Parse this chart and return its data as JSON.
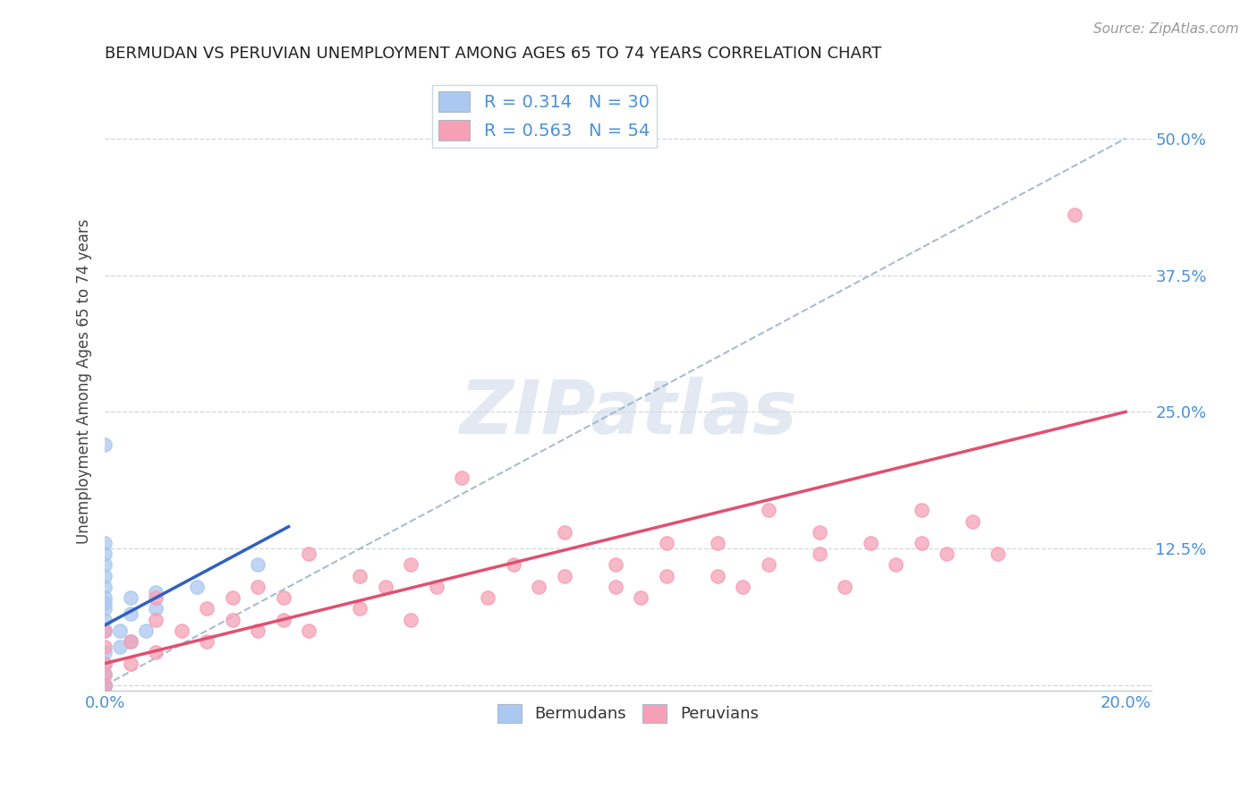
{
  "title": "BERMUDAN VS PERUVIAN UNEMPLOYMENT AMONG AGES 65 TO 74 YEARS CORRELATION CHART",
  "source": "Source: ZipAtlas.com",
  "ylabel": "Unemployment Among Ages 65 to 74 years",
  "xlim": [
    0.0,
    0.205
  ],
  "ylim": [
    -0.005,
    0.56
  ],
  "xticks": [
    0.0,
    0.05,
    0.1,
    0.15,
    0.2
  ],
  "yticks": [
    0.0,
    0.125,
    0.25,
    0.375,
    0.5
  ],
  "bermuda_R": 0.314,
  "bermuda_N": 30,
  "peru_R": 0.563,
  "peru_N": 54,
  "bermuda_color": "#aac8f0",
  "peru_color": "#f5a0b5",
  "bermuda_line_color": "#3060c0",
  "peru_line_color": "#e05070",
  "diag_line_color": "#9ab0cc",
  "tick_color": "#4a90d9",
  "background_color": "#ffffff",
  "bermuda_x": [
    0.0,
    0.0,
    0.0,
    0.0,
    0.0,
    0.0,
    0.0,
    0.0,
    0.0,
    0.0,
    0.0,
    0.0,
    0.0,
    0.0,
    0.0,
    0.0,
    0.0,
    0.0,
    0.0,
    0.0,
    0.003,
    0.003,
    0.005,
    0.005,
    0.005,
    0.008,
    0.01,
    0.01,
    0.018,
    0.03
  ],
  "bermuda_y": [
    0.0,
    0.0,
    0.0,
    0.0,
    0.0,
    0.01,
    0.02,
    0.03,
    0.05,
    0.06,
    0.07,
    0.075,
    0.08,
    0.09,
    0.1,
    0.11,
    0.12,
    0.13,
    0.22,
    0.0,
    0.035,
    0.05,
    0.04,
    0.065,
    0.08,
    0.05,
    0.07,
    0.085,
    0.09,
    0.11
  ],
  "peru_x": [
    0.0,
    0.0,
    0.0,
    0.0,
    0.0,
    0.005,
    0.005,
    0.01,
    0.01,
    0.01,
    0.015,
    0.02,
    0.02,
    0.025,
    0.025,
    0.03,
    0.03,
    0.035,
    0.035,
    0.04,
    0.04,
    0.05,
    0.05,
    0.055,
    0.06,
    0.06,
    0.065,
    0.07,
    0.075,
    0.08,
    0.085,
    0.09,
    0.09,
    0.1,
    0.1,
    0.105,
    0.11,
    0.11,
    0.12,
    0.12,
    0.125,
    0.13,
    0.13,
    0.14,
    0.14,
    0.145,
    0.15,
    0.155,
    0.16,
    0.16,
    0.165,
    0.17,
    0.175,
    0.19
  ],
  "peru_y": [
    0.0,
    0.01,
    0.02,
    0.035,
    0.05,
    0.02,
    0.04,
    0.03,
    0.06,
    0.08,
    0.05,
    0.04,
    0.07,
    0.06,
    0.08,
    0.05,
    0.09,
    0.06,
    0.08,
    0.05,
    0.12,
    0.07,
    0.1,
    0.09,
    0.06,
    0.11,
    0.09,
    0.19,
    0.08,
    0.11,
    0.09,
    0.1,
    0.14,
    0.09,
    0.11,
    0.08,
    0.13,
    0.1,
    0.1,
    0.13,
    0.09,
    0.11,
    0.16,
    0.12,
    0.14,
    0.09,
    0.13,
    0.11,
    0.13,
    0.16,
    0.12,
    0.15,
    0.12,
    0.43
  ],
  "bermuda_line_x0": 0.0,
  "bermuda_line_y0": 0.055,
  "bermuda_line_x1": 0.036,
  "bermuda_line_y1": 0.145,
  "peru_line_x0": 0.0,
  "peru_line_y0": 0.02,
  "peru_line_x1": 0.2,
  "peru_line_y1": 0.25,
  "diag_line_x0": 0.0,
  "diag_line_y0": 0.0,
  "diag_line_x1": 0.2,
  "diag_line_y1": 0.5
}
